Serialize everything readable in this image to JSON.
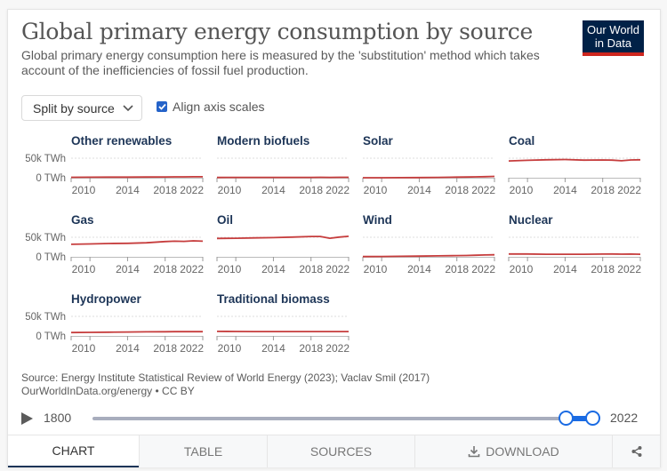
{
  "header": {
    "title": "Global primary energy consumption by source",
    "subtitle": "Global primary energy consumption here is measured by the 'substitution' method which takes account of the inefficiencies of fossil fuel production.",
    "logo_line1": "Our World",
    "logo_line2": "in Data"
  },
  "controls": {
    "split_label": "Split by source",
    "align_label": "Align axis scales",
    "align_checked": true
  },
  "colors": {
    "line": "#c63d3d",
    "accent": "#1a6be3",
    "title": "#1d3557",
    "logo_bg": "#002147",
    "logo_bar": "#ce261e"
  },
  "chart_data": {
    "type": "line",
    "layout": "small-multiples",
    "title": "Global primary energy consumption by source",
    "xlabel": "",
    "ylabel": "",
    "unit": "TWh",
    "x": [
      2008,
      2010,
      2012,
      2014,
      2016,
      2018,
      2019,
      2020,
      2021,
      2022
    ],
    "x_ticks": [
      "2010",
      "2014",
      "2018",
      "2022"
    ],
    "xlim": [
      2008,
      2022
    ],
    "y_ticks": [
      "0 TWh",
      "50k TWh"
    ],
    "ylim": [
      0,
      50000
    ],
    "grid": true,
    "series": [
      {
        "name": "Other renewables",
        "values": [
          1100,
          1300,
          1500,
          1700,
          1900,
          2100,
          2200,
          2300,
          2400,
          2500
        ]
      },
      {
        "name": "Modern biofuels",
        "values": [
          700,
          800,
          850,
          900,
          950,
          1000,
          1100,
          1000,
          1100,
          1150
        ]
      },
      {
        "name": "Solar",
        "values": [
          30,
          80,
          250,
          500,
          850,
          1500,
          1800,
          2200,
          2700,
          3400
        ]
      },
      {
        "name": "Coal",
        "values": [
          43000,
          44500,
          46000,
          46500,
          45000,
          45500,
          45000,
          43500,
          45500,
          45800
        ]
      },
      {
        "name": "Gas",
        "values": [
          32000,
          33000,
          34000,
          34500,
          36000,
          39000,
          40000,
          39500,
          41000,
          40000
        ]
      },
      {
        "name": "Oil",
        "values": [
          47000,
          47500,
          48500,
          49000,
          50500,
          52000,
          52000,
          47500,
          50500,
          52500
        ]
      },
      {
        "name": "Wind",
        "values": [
          600,
          900,
          1300,
          1800,
          2400,
          3200,
          3500,
          4000,
          4700,
          5300
        ]
      },
      {
        "name": "Nuclear",
        "values": [
          7300,
          7200,
          6500,
          6600,
          6700,
          7000,
          7200,
          6800,
          7000,
          6700
        ]
      },
      {
        "name": "Hydropower",
        "values": [
          8600,
          9100,
          9500,
          10000,
          10400,
          10700,
          10800,
          11000,
          10800,
          10900
        ]
      },
      {
        "name": "Traditional biomass",
        "values": [
          11500,
          11300,
          11200,
          11100,
          11100,
          11100,
          11100,
          11100,
          11100,
          11100
        ]
      }
    ]
  },
  "footer": {
    "source": "Source: Energy Institute Statistical Review of World Energy (2023); Vaclav Smil (2017)",
    "license": "OurWorldInData.org/energy • CC BY"
  },
  "timeline": {
    "start_year": "1800",
    "end_year": "2022",
    "selected_start": 2008,
    "selected_end": 2022
  },
  "tabs": [
    {
      "label": "CHART",
      "icon": "",
      "active": true
    },
    {
      "label": "TABLE",
      "icon": "",
      "active": false
    },
    {
      "label": "SOURCES",
      "icon": "",
      "active": false
    },
    {
      "label": "DOWNLOAD",
      "icon": "download-icon",
      "active": false
    },
    {
      "label": "",
      "icon": "share-icon",
      "active": false
    }
  ]
}
